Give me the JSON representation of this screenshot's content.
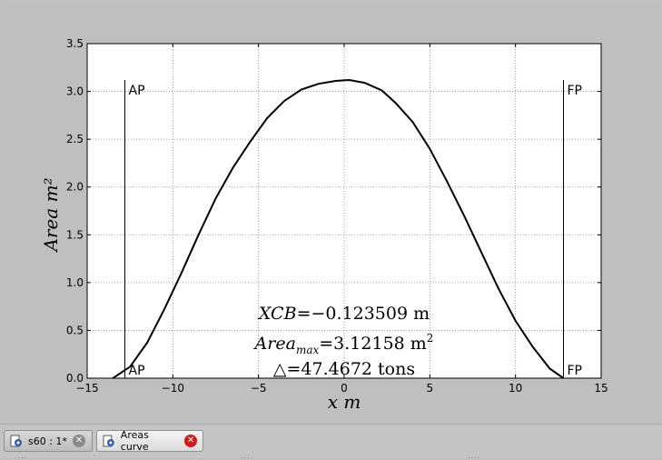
{
  "chart_data": {
    "type": "line",
    "xlabel": "x   m",
    "ylabel": "Area   m²",
    "xlim": [
      -15,
      15
    ],
    "ylim": [
      0,
      3.5
    ],
    "xticks": [
      "−15",
      "−10",
      "−5",
      "0",
      "5",
      "10",
      "15"
    ],
    "xtick_values": [
      -15,
      -10,
      -5,
      0,
      5,
      10,
      15
    ],
    "yticks": [
      "0.0",
      "0.5",
      "1.0",
      "1.5",
      "2.0",
      "2.5",
      "3.0",
      "3.5"
    ],
    "ytick_values": [
      0,
      0.5,
      1.0,
      1.5,
      2.0,
      2.5,
      3.0,
      3.5
    ],
    "grid": true,
    "series": [
      {
        "x": [
          -13.5,
          -12.5,
          -11.5,
          -10.5,
          -9.5,
          -8.5,
          -7.5,
          -6.5,
          -5.5,
          -4.5,
          -3.5,
          -2.5,
          -1.5,
          -0.5,
          0.3,
          1.2,
          2.2,
          3.0,
          4.0,
          5.0,
          6.0,
          7.0,
          8.0,
          9.0,
          10.0,
          11.0,
          12.0,
          12.8
        ],
        "y": [
          0.0,
          0.12,
          0.37,
          0.72,
          1.1,
          1.5,
          1.88,
          2.2,
          2.47,
          2.72,
          2.9,
          3.02,
          3.08,
          3.11,
          3.12,
          3.09,
          3.01,
          2.88,
          2.68,
          2.4,
          2.06,
          1.7,
          1.32,
          0.94,
          0.6,
          0.33,
          0.1,
          0.0
        ]
      }
    ],
    "vlines": [
      {
        "x": -12.8,
        "label": "AP"
      },
      {
        "x": 12.8,
        "label": "FP"
      }
    ],
    "vline_ymax": 3.12,
    "info": {
      "xcb_label": "XCB",
      "xcb_value": "=−0.123509   m",
      "area_label": "Area",
      "area_sub": "max",
      "area_value": "=3.12158   m",
      "area_sup": "2",
      "disp_symbol": "△",
      "disp_value": "=47.4672   tons"
    }
  },
  "tabs": [
    {
      "label": "s60 : 1*"
    },
    {
      "label": "Areas curve"
    }
  ],
  "colors": {
    "curve": "#000000",
    "grid": "#888888",
    "tab_close_active": "#d01c1c",
    "tab_close_inactive": "#8a8a8a"
  },
  "icons": {
    "tab_icon": "gear-document-icon",
    "close": "close-icon"
  }
}
